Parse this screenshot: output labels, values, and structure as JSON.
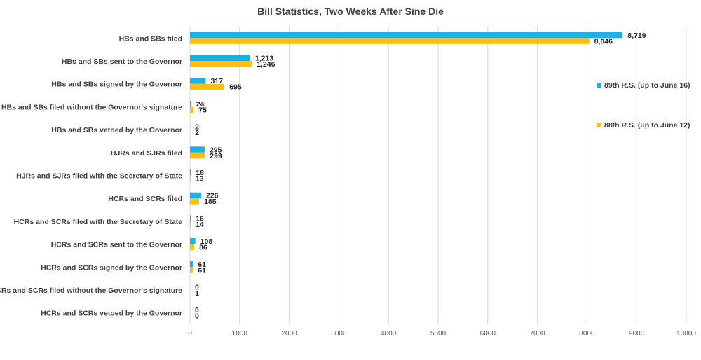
{
  "chart_data": {
    "type": "bar",
    "orientation": "horizontal",
    "title": "Bill Statistics, Two Weeks After Sine Die",
    "categories": [
      "HBs and SBs filed",
      "HBs and SBs sent to the Governor",
      "HBs and SBs signed by the Governor",
      "HBs and SBs filed without the Governor's signature",
      "HBs and SBs vetoed by the Governor",
      "HJRs and SJRs filed",
      "HJRs and SJRs filed with the Secretary of State",
      "HCRs and SCRs filed",
      "HCRs and SCRs filed with the Secretary of State",
      "HCRs and SCRs sent to the Governor",
      "HCRs and SCRs signed by the Governor",
      "HCRs and SCRs filed without the Governor's signature",
      "HCRs and SCRs vetoed by the Governor"
    ],
    "series": [
      {
        "name": "89th R.S. (up to June 16)",
        "color": "#1BB0E6",
        "values": [
          8719,
          1213,
          317,
          24,
          2,
          295,
          18,
          226,
          16,
          108,
          61,
          0,
          0
        ],
        "labels": [
          "8,719",
          "1,213",
          "317",
          "24",
          "2",
          "295",
          "18",
          "226",
          "16",
          "108",
          "61",
          "0",
          "0"
        ]
      },
      {
        "name": "88th R.S. (up to June 12)",
        "color": "#FBBF14",
        "values": [
          8046,
          1246,
          695,
          75,
          2,
          299,
          13,
          185,
          14,
          86,
          61,
          1,
          0
        ],
        "labels": [
          "8,046",
          "1,246",
          "695",
          "75",
          "2",
          "299",
          "13",
          "185",
          "14",
          "86",
          "61",
          "1",
          "0"
        ]
      }
    ],
    "xlim": [
      0,
      10000
    ],
    "xticks": [
      0,
      1000,
      2000,
      3000,
      4000,
      5000,
      6000,
      7000,
      8000,
      9000,
      10000
    ],
    "xtick_labels": [
      "0",
      "1000",
      "2000",
      "3000",
      "4000",
      "5000",
      "6000",
      "7000",
      "8000",
      "9000",
      "10000"
    ],
    "xlabel": "",
    "ylabel": "",
    "grid": "vertical",
    "legend_position": "right"
  }
}
